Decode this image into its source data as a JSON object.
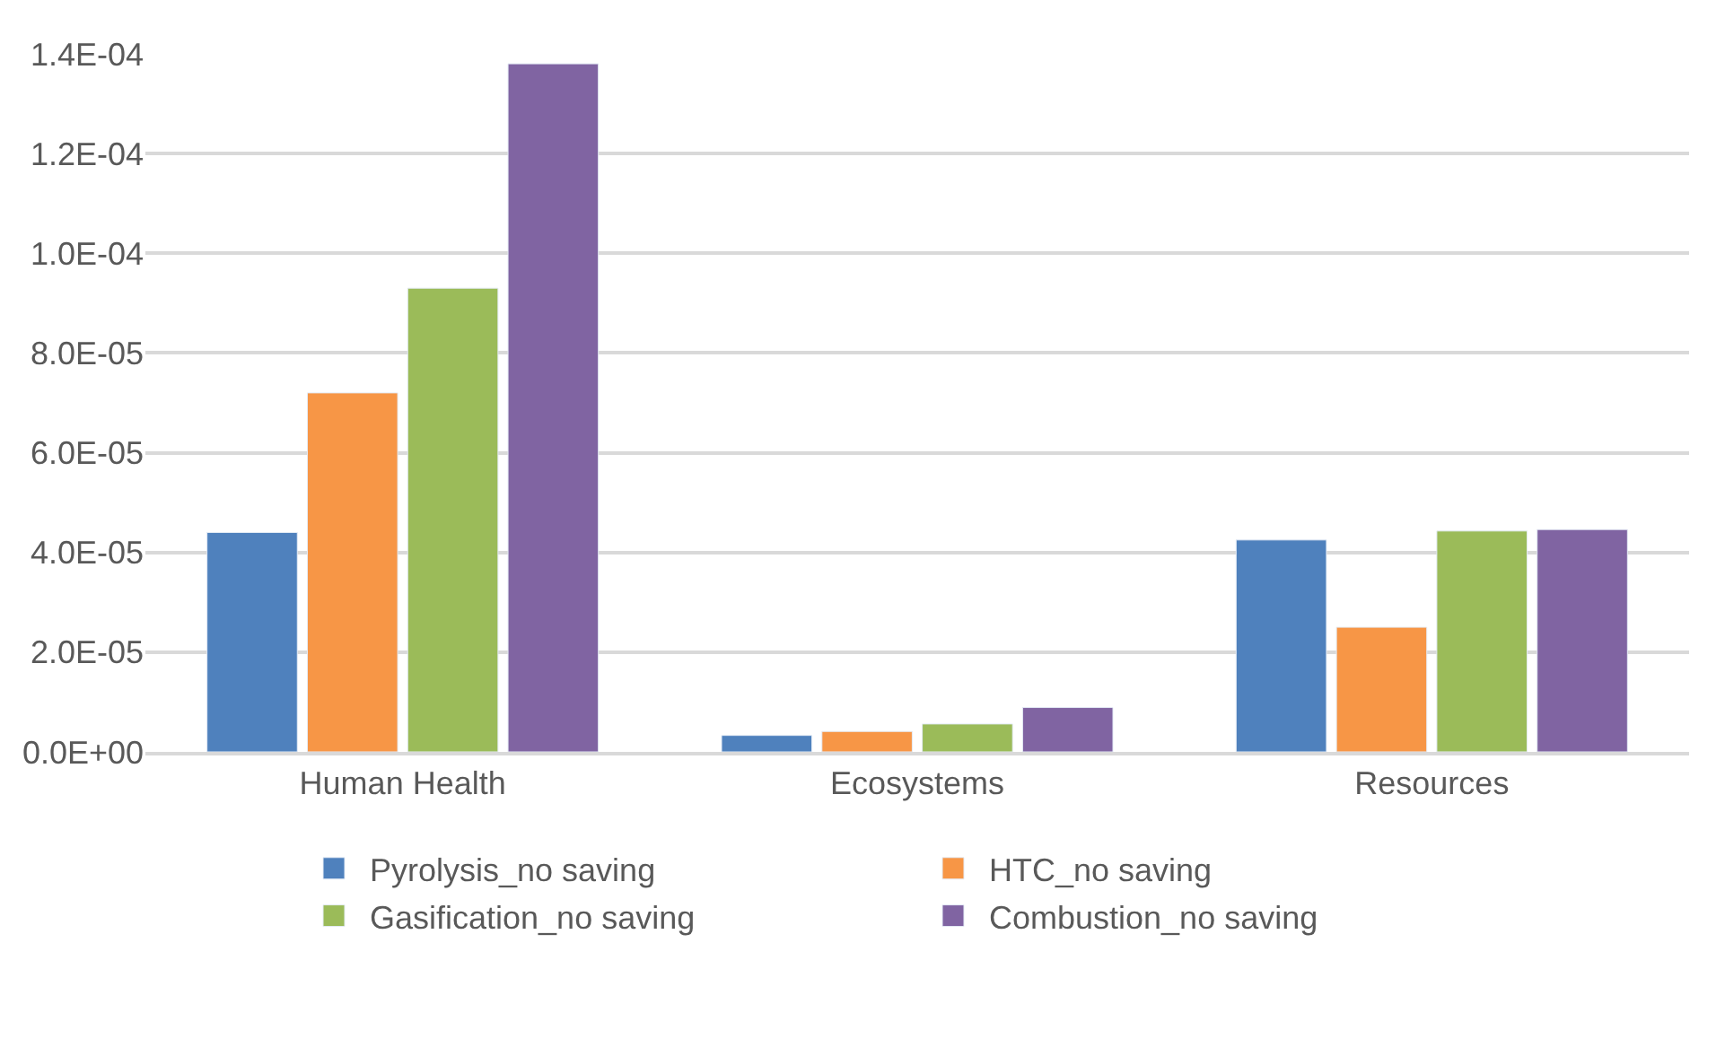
{
  "chart_data": {
    "type": "bar",
    "categories": [
      "Human Health",
      "Ecosystems",
      "Resources"
    ],
    "series": [
      {
        "name": "Pyrolysis_no saving",
        "color": "#4f81bd",
        "values": [
          4.4e-05,
          3.3e-06,
          4.25e-05
        ]
      },
      {
        "name": "HTC_no saving",
        "color": "#f79646",
        "values": [
          7.2e-05,
          4.1e-06,
          2.5e-05
        ]
      },
      {
        "name": "Gasification_no saving",
        "color": "#9bbb59",
        "values": [
          9.3e-05,
          5.6e-06,
          4.43e-05
        ]
      },
      {
        "name": "Combustion_no saving",
        "color": "#8064a2",
        "values": [
          0.000138,
          8.9e-06,
          4.46e-05
        ]
      }
    ],
    "ylim": [
      0,
      0.00014
    ],
    "yticks": [
      {
        "value": 0,
        "label": "0.0E+00"
      },
      {
        "value": 2e-05,
        "label": "2.0E-05"
      },
      {
        "value": 4e-05,
        "label": "4.0E-05"
      },
      {
        "value": 6e-05,
        "label": "6.0E-05"
      },
      {
        "value": 8e-05,
        "label": "8.0E-05"
      },
      {
        "value": 0.0001,
        "label": "1.0E-04"
      },
      {
        "value": 0.00012,
        "label": "1.2E-04"
      },
      {
        "value": 0.00014,
        "label": "1.4E-04"
      }
    ],
    "grid": "y",
    "legend": "bottom"
  }
}
